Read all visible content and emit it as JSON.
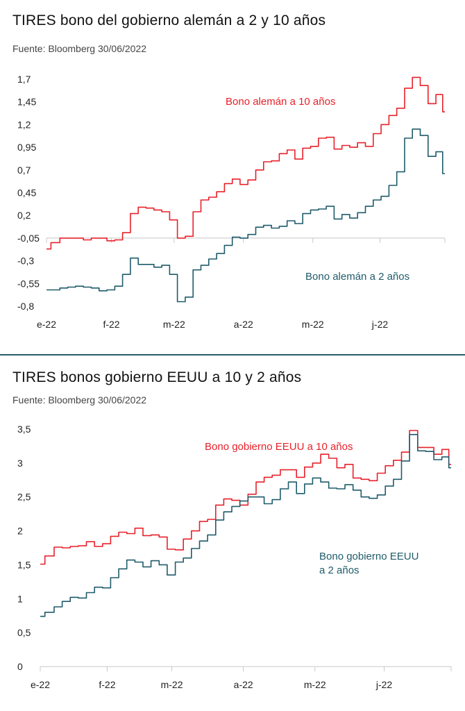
{
  "chart_data": [
    {
      "type": "line",
      "title": "TIRES bono del gobierno alemán a 2 y 10 años",
      "source": "Fuente: Bloomberg 30/06/2022",
      "x_ticks": [
        "e-22",
        "f-22",
        "m-22",
        "a-22",
        "m-22",
        "j-22"
      ],
      "y_ticks": [
        "1,7",
        "1,45",
        "1,2",
        "0,95",
        "0,7",
        "0,45",
        "0,2",
        "-0,05",
        "-0,3",
        "-0,55",
        "-0,8"
      ],
      "ylim": [
        -0.8,
        1.7
      ],
      "grid": false,
      "series": [
        {
          "name": "Bono alemán a 10 años",
          "color": "#e8202a",
          "x": [
            "2022-01-03",
            "2022-01-07",
            "2022-01-11",
            "2022-01-14",
            "2022-01-18",
            "2022-01-21",
            "2022-01-25",
            "2022-01-28",
            "2022-02-01",
            "2022-02-04",
            "2022-02-08",
            "2022-02-11",
            "2022-02-15",
            "2022-02-18",
            "2022-02-22",
            "2022-02-25",
            "2022-03-01",
            "2022-03-04",
            "2022-03-08",
            "2022-03-11",
            "2022-03-15",
            "2022-03-18",
            "2022-03-22",
            "2022-03-25",
            "2022-03-29",
            "2022-04-01",
            "2022-04-05",
            "2022-04-08",
            "2022-04-12",
            "2022-04-15",
            "2022-04-19",
            "2022-04-22",
            "2022-04-26",
            "2022-04-29",
            "2022-05-03",
            "2022-05-06",
            "2022-05-10",
            "2022-05-13",
            "2022-05-17",
            "2022-05-20",
            "2022-05-24",
            "2022-05-27",
            "2022-05-31",
            "2022-06-03",
            "2022-06-07",
            "2022-06-10",
            "2022-06-14",
            "2022-06-17",
            "2022-06-21",
            "2022-06-24",
            "2022-06-28",
            "2022-06-30"
          ],
          "values": [
            -0.17,
            -0.1,
            -0.05,
            -0.05,
            -0.05,
            -0.07,
            -0.05,
            -0.05,
            -0.08,
            -0.07,
            0.01,
            0.22,
            0.29,
            0.28,
            0.26,
            0.24,
            0.15,
            -0.05,
            -0.03,
            0.24,
            0.37,
            0.4,
            0.46,
            0.55,
            0.6,
            0.54,
            0.59,
            0.7,
            0.79,
            0.8,
            0.88,
            0.92,
            0.82,
            0.94,
            0.96,
            1.05,
            1.06,
            0.93,
            0.97,
            0.95,
            1.0,
            0.96,
            1.1,
            1.2,
            1.3,
            1.38,
            1.6,
            1.72,
            1.63,
            1.43,
            1.53,
            1.34
          ]
        },
        {
          "name": "Bono alemán a 2 años",
          "color": "#1e5b6a",
          "x": [
            "2022-01-03",
            "2022-01-07",
            "2022-01-11",
            "2022-01-14",
            "2022-01-18",
            "2022-01-21",
            "2022-01-25",
            "2022-01-28",
            "2022-02-01",
            "2022-02-04",
            "2022-02-08",
            "2022-02-11",
            "2022-02-15",
            "2022-02-18",
            "2022-02-22",
            "2022-02-25",
            "2022-03-01",
            "2022-03-04",
            "2022-03-08",
            "2022-03-11",
            "2022-03-15",
            "2022-03-18",
            "2022-03-22",
            "2022-03-25",
            "2022-03-29",
            "2022-04-01",
            "2022-04-05",
            "2022-04-08",
            "2022-04-12",
            "2022-04-15",
            "2022-04-19",
            "2022-04-22",
            "2022-04-26",
            "2022-04-29",
            "2022-05-03",
            "2022-05-06",
            "2022-05-10",
            "2022-05-13",
            "2022-05-17",
            "2022-05-20",
            "2022-05-24",
            "2022-05-27",
            "2022-05-31",
            "2022-06-03",
            "2022-06-07",
            "2022-06-10",
            "2022-06-14",
            "2022-06-17",
            "2022-06-21",
            "2022-06-24",
            "2022-06-28",
            "2022-06-30"
          ],
          "values": [
            -0.62,
            -0.62,
            -0.6,
            -0.59,
            -0.58,
            -0.59,
            -0.6,
            -0.63,
            -0.62,
            -0.58,
            -0.45,
            -0.27,
            -0.34,
            -0.34,
            -0.37,
            -0.35,
            -0.45,
            -0.75,
            -0.7,
            -0.4,
            -0.35,
            -0.28,
            -0.22,
            -0.13,
            -0.04,
            -0.05,
            -0.01,
            0.07,
            0.09,
            0.06,
            0.08,
            0.14,
            0.11,
            0.22,
            0.26,
            0.27,
            0.3,
            0.16,
            0.21,
            0.17,
            0.23,
            0.3,
            0.37,
            0.41,
            0.53,
            0.68,
            1.05,
            1.15,
            1.08,
            0.85,
            0.9,
            0.66
          ]
        }
      ]
    },
    {
      "type": "line",
      "title": "TIRES bonos gobierno EEUU a 10 y 2 años",
      "source": "Fuente: Bloomberg 30/06/2022",
      "x_ticks": [
        "e-22",
        "f-22",
        "m-22",
        "a-22",
        "m-22",
        "j-22"
      ],
      "y_ticks": [
        "3,5",
        "3",
        "2,5",
        "2",
        "1,5",
        "1",
        "0,5",
        "0"
      ],
      "ylim": [
        0,
        3.5
      ],
      "grid": false,
      "series": [
        {
          "name": "Bono gobierno EEUU a 10 años",
          "color": "#e8202a",
          "x": [
            "2022-01-03",
            "2022-01-07",
            "2022-01-11",
            "2022-01-14",
            "2022-01-18",
            "2022-01-21",
            "2022-01-25",
            "2022-01-28",
            "2022-02-01",
            "2022-02-04",
            "2022-02-08",
            "2022-02-11",
            "2022-02-15",
            "2022-02-18",
            "2022-02-22",
            "2022-02-25",
            "2022-03-01",
            "2022-03-04",
            "2022-03-08",
            "2022-03-11",
            "2022-03-15",
            "2022-03-18",
            "2022-03-22",
            "2022-03-25",
            "2022-03-29",
            "2022-04-01",
            "2022-04-05",
            "2022-04-08",
            "2022-04-12",
            "2022-04-15",
            "2022-04-19",
            "2022-04-22",
            "2022-04-26",
            "2022-04-29",
            "2022-05-03",
            "2022-05-06",
            "2022-05-10",
            "2022-05-13",
            "2022-05-17",
            "2022-05-20",
            "2022-05-24",
            "2022-05-27",
            "2022-05-31",
            "2022-06-03",
            "2022-06-07",
            "2022-06-10",
            "2022-06-14",
            "2022-06-17",
            "2022-06-21",
            "2022-06-24",
            "2022-06-28",
            "2022-06-30"
          ],
          "values": [
            1.51,
            1.63,
            1.76,
            1.75,
            1.77,
            1.78,
            1.84,
            1.77,
            1.81,
            1.92,
            1.98,
            1.96,
            2.04,
            1.93,
            1.94,
            1.91,
            1.73,
            1.72,
            1.88,
            2.0,
            2.14,
            2.17,
            2.38,
            2.47,
            2.45,
            2.38,
            2.54,
            2.72,
            2.79,
            2.82,
            2.9,
            2.9,
            2.79,
            2.94,
            3.0,
            3.13,
            3.07,
            2.93,
            2.98,
            2.78,
            2.76,
            2.74,
            2.85,
            2.96,
            3.04,
            3.16,
            3.48,
            3.23,
            3.23,
            3.13,
            3.2,
            2.98
          ]
        },
        {
          "name": "Bono gobierno EEUU a 2 años",
          "color": "#1e5b6a",
          "x": [
            "2022-01-03",
            "2022-01-07",
            "2022-01-11",
            "2022-01-14",
            "2022-01-18",
            "2022-01-21",
            "2022-01-25",
            "2022-01-28",
            "2022-02-01",
            "2022-02-04",
            "2022-02-08",
            "2022-02-11",
            "2022-02-15",
            "2022-02-18",
            "2022-02-22",
            "2022-02-25",
            "2022-03-01",
            "2022-03-04",
            "2022-03-08",
            "2022-03-11",
            "2022-03-15",
            "2022-03-18",
            "2022-03-22",
            "2022-03-25",
            "2022-03-29",
            "2022-04-01",
            "2022-04-05",
            "2022-04-08",
            "2022-04-12",
            "2022-04-15",
            "2022-04-19",
            "2022-04-22",
            "2022-04-26",
            "2022-04-29",
            "2022-05-03",
            "2022-05-06",
            "2022-05-10",
            "2022-05-13",
            "2022-05-17",
            "2022-05-20",
            "2022-05-24",
            "2022-05-27",
            "2022-05-31",
            "2022-06-03",
            "2022-06-07",
            "2022-06-10",
            "2022-06-14",
            "2022-06-17",
            "2022-06-21",
            "2022-06-24",
            "2022-06-28",
            "2022-06-30"
          ],
          "values": [
            0.74,
            0.8,
            0.88,
            0.96,
            1.02,
            1.01,
            1.09,
            1.17,
            1.16,
            1.31,
            1.44,
            1.57,
            1.54,
            1.47,
            1.56,
            1.5,
            1.35,
            1.54,
            1.6,
            1.74,
            1.85,
            1.94,
            2.16,
            2.28,
            2.36,
            2.44,
            2.5,
            2.5,
            2.4,
            2.46,
            2.62,
            2.72,
            2.55,
            2.69,
            2.78,
            2.72,
            2.63,
            2.62,
            2.68,
            2.6,
            2.5,
            2.48,
            2.53,
            2.66,
            2.76,
            3.03,
            3.42,
            3.18,
            3.17,
            3.05,
            3.09,
            2.93
          ]
        }
      ]
    }
  ],
  "charts": [
    {
      "title": "TIRES bono del gobierno alemán a 2 y 10 años",
      "source": "Fuente: Bloomberg 30/06/2022",
      "labels": [
        {
          "lines": [
            "Bono alemán a 10 años"
          ],
          "color": "#e8202a"
        },
        {
          "lines": [
            "Bono alemán a 2 años"
          ],
          "color": "#1e5b6a"
        }
      ]
    },
    {
      "title": "TIRES bonos gobierno EEUU a 10 y 2 años",
      "source": "Fuente: Bloomberg 30/06/2022",
      "labels": [
        {
          "lines": [
            "Bono gobierno EEUU a 10 años"
          ],
          "color": "#e8202a"
        },
        {
          "lines": [
            "Bono gobierno EEUU",
            "a 2 años"
          ],
          "color": "#1e5b6a"
        }
      ]
    }
  ]
}
